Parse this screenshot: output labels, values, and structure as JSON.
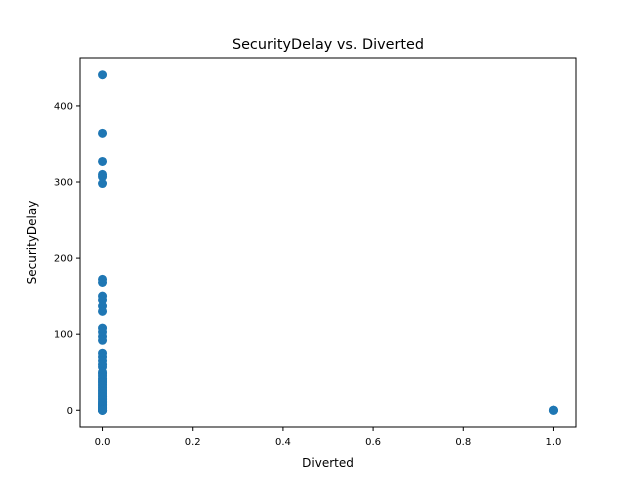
{
  "chart_data": {
    "type": "scatter",
    "title": "SecurityDelay vs. Diverted",
    "xlabel": "Diverted",
    "ylabel": "SecurityDelay",
    "xlim": [
      -0.05,
      1.05
    ],
    "ylim": [
      -22,
      463
    ],
    "x_ticks": [
      0.0,
      0.2,
      0.4,
      0.6,
      0.8,
      1.0
    ],
    "x_tick_labels": [
      "0.0",
      "0.2",
      "0.4",
      "0.6",
      "0.8",
      "1.0"
    ],
    "y_ticks": [
      0,
      100,
      200,
      300,
      400
    ],
    "y_tick_labels": [
      "0",
      "100",
      "200",
      "300",
      "400"
    ],
    "grid": false,
    "legend": "none",
    "color": "#1f77b4",
    "series": [
      {
        "x": [
          0,
          0,
          0,
          0,
          0,
          0,
          0,
          0,
          0,
          0,
          0,
          0,
          0,
          0,
          0,
          0,
          0,
          0,
          0,
          0,
          0,
          0,
          0,
          0,
          0,
          0,
          0,
          0,
          0,
          0,
          0,
          0,
          0,
          0,
          0,
          0,
          0,
          0,
          0,
          0,
          0,
          0,
          0,
          0,
          0,
          0,
          0,
          0,
          0,
          0,
          0,
          0,
          0,
          0,
          0,
          0,
          1,
          1,
          1
        ],
        "y": [
          441,
          364,
          327,
          310,
          307,
          298,
          172,
          168,
          150,
          145,
          137,
          130,
          108,
          103,
          97,
          92,
          75,
          70,
          65,
          60,
          57,
          50,
          48,
          45,
          42,
          40,
          38,
          36,
          34,
          32,
          30,
          28,
          26,
          24,
          22,
          20,
          18,
          16,
          14,
          12,
          10,
          9,
          8,
          7,
          6,
          5,
          4,
          3,
          2,
          1,
          0,
          0,
          0,
          0,
          0,
          0,
          0,
          0,
          0
        ]
      }
    ]
  }
}
